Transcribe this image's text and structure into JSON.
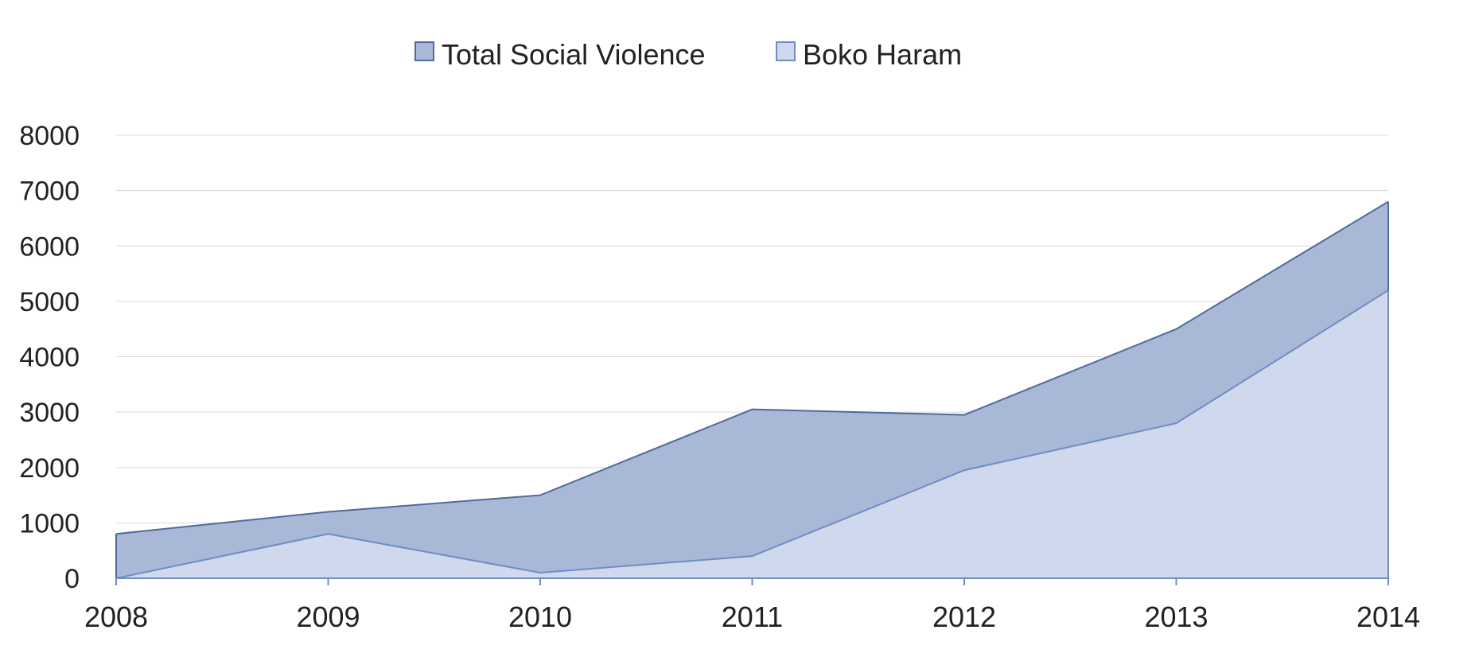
{
  "chart_data": {
    "type": "area",
    "x": [
      "2008",
      "2009",
      "2010",
      "2011",
      "2012",
      "2013",
      "2014"
    ],
    "series": [
      {
        "name": "Total Social Violence",
        "values": [
          800,
          1200,
          1500,
          3050,
          2950,
          4500,
          6800
        ],
        "color": "#a9b8d6",
        "stroke": "#4f6a9c"
      },
      {
        "name": "Boko Haram",
        "values": [
          0,
          800,
          100,
          400,
          1950,
          2800,
          5200
        ],
        "color": "#cfd8ec",
        "stroke": "#6f8cc4"
      }
    ],
    "y_ticks": [
      "0",
      "1000",
      "2000",
      "3000",
      "4000",
      "5000",
      "6000",
      "7000",
      "8000"
    ],
    "ylim": [
      0,
      8000
    ],
    "grid": true,
    "legend_position": "top-center"
  }
}
